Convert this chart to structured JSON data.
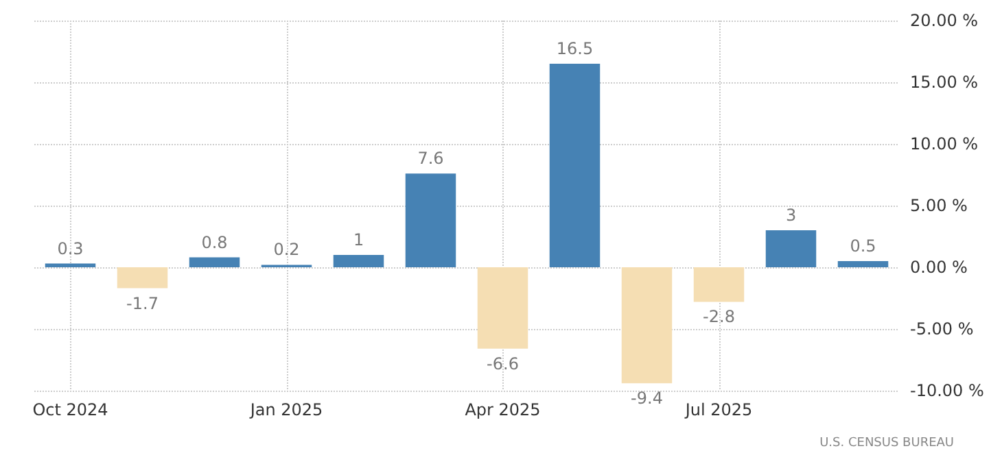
{
  "chart_data": {
    "type": "bar",
    "categories": [
      "Oct 2024",
      null,
      null,
      "Jan 2025",
      null,
      null,
      "Apr 2025",
      null,
      null,
      "Jul 2025",
      null,
      null
    ],
    "values": [
      0.3,
      -1.7,
      0.8,
      0.2,
      1,
      7.6,
      -6.6,
      16.5,
      -9.4,
      -2.8,
      3,
      0.5
    ],
    "colors": [
      "#4682b4",
      "#f5deb3",
      "#4682b4",
      "#4682b4",
      "#4682b4",
      "#4682b4",
      "#f5deb3",
      "#4682b4",
      "#f5deb3",
      "#f5deb3",
      "#4682b4",
      "#4682b4"
    ],
    "ylim": [
      -10,
      20
    ],
    "yticks": [
      {
        "value": -10,
        "label": "-10.00 %"
      },
      {
        "value": -5,
        "label": "-5.00 %"
      },
      {
        "value": 0,
        "label": "0.00 %"
      },
      {
        "value": 5,
        "label": "5.00 %"
      },
      {
        "value": 10,
        "label": "10.00 %"
      },
      {
        "value": 15,
        "label": "15.00 %"
      },
      {
        "value": 20,
        "label": "20.00 %"
      }
    ],
    "grid": true,
    "data_labels": true,
    "annotations": [
      "U.S. CENSUS BUREAU"
    ]
  }
}
